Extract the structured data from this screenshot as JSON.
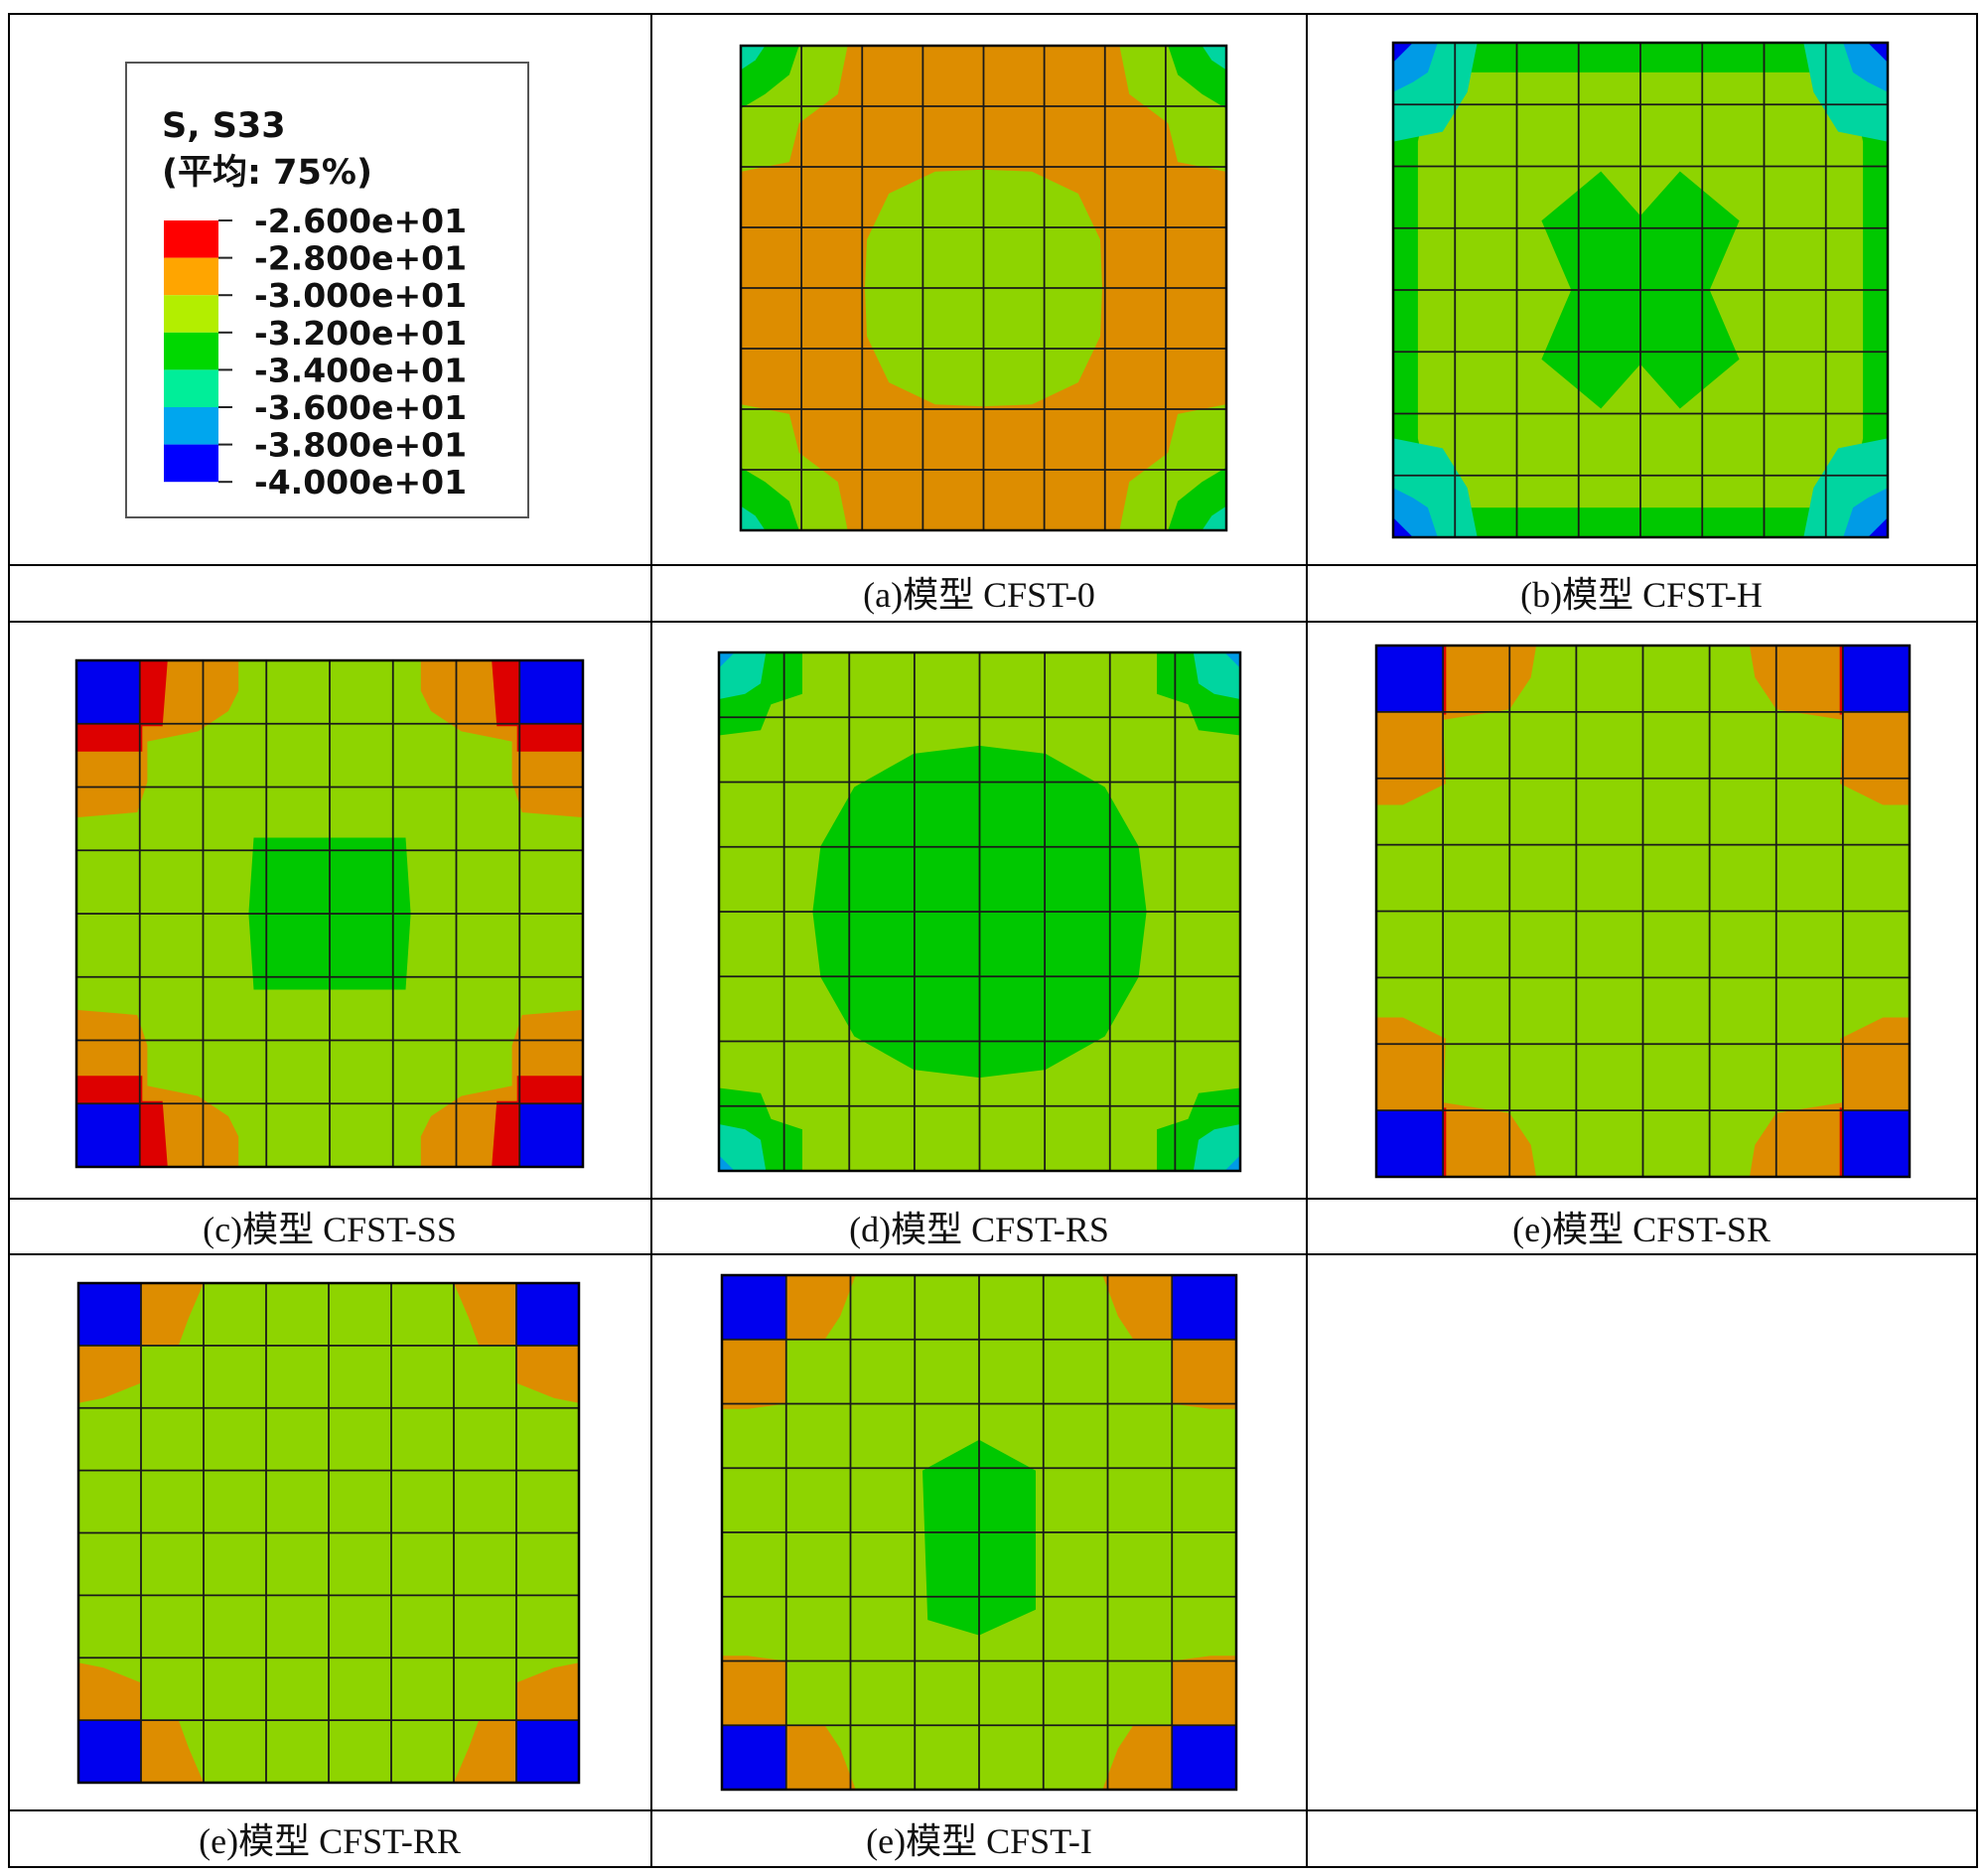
{
  "legend": {
    "title_line1": "S, S33",
    "title_line2": "(平均: 75%)",
    "entries": [
      "-2.600e+01",
      "-2.800e+01",
      "-3.000e+01",
      "-3.200e+01",
      "-3.400e+01",
      "-3.600e+01",
      "-3.800e+01",
      "-4.000e+01"
    ],
    "bands": [
      {
        "color": "#ff0000"
      },
      {
        "color": "#ffa500"
      },
      {
        "color": "#b3ee00"
      },
      {
        "color": "#00d800"
      },
      {
        "color": "#00ee99"
      },
      {
        "color": "#00a6ee"
      },
      {
        "color": "#0000ff"
      }
    ]
  },
  "colors": {
    "orange": "#dd8d00",
    "lightgreen": "#8ed400",
    "green": "#00c800",
    "teal": "#00d5a0",
    "blue": "#0000ee",
    "red": "#dd0000",
    "grid": "#1a1a1a",
    "cell_border": "#000000"
  },
  "panels": [
    {
      "id": "a",
      "caption": "(a)模型 CFST-0",
      "pattern": "cfst0"
    },
    {
      "id": "b",
      "caption": "(b)模型 CFST-H",
      "pattern": "cfsth"
    },
    {
      "id": "c",
      "caption": "(c)模型 CFST-SS",
      "pattern": "cfstss"
    },
    {
      "id": "d",
      "caption": "(d)模型 CFST-RS",
      "pattern": "cfstrs"
    },
    {
      "id": "e1",
      "caption": "(e)模型 CFST-SR",
      "pattern": "cfstsr"
    },
    {
      "id": "e2",
      "caption": "(e)模型 CFST-RR",
      "pattern": "cfstrr"
    },
    {
      "id": "e3",
      "caption": "(e)模型 CFST-I",
      "pattern": "cfsti"
    }
  ]
}
